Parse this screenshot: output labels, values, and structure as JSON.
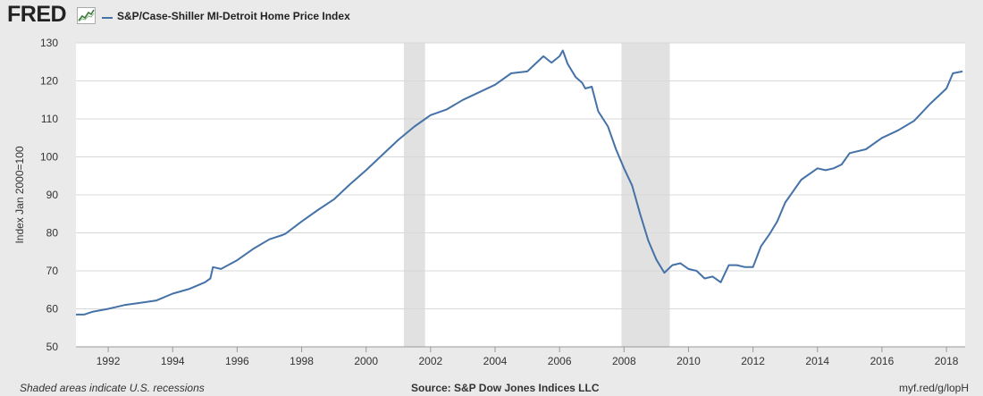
{
  "header": {
    "logo_text": "FRED",
    "logo_icon": "line-chart-icon",
    "legend_label": "S&P/Case-Shiller MI-Detroit Home Price Index"
  },
  "footer": {
    "left": "Shaded areas indicate U.S. recessions",
    "center": "Source: S&P Dow Jones Indices LLC",
    "right": "myf.red/g/lopH"
  },
  "colors": {
    "series": "#4572a7",
    "recession": "#e1e1e1",
    "plot_bg": "#ffffff",
    "page_bg": "#eaeaea",
    "grid": "#d8d8d8"
  },
  "chart_data": {
    "type": "line",
    "title": "",
    "xlabel": "",
    "ylabel": "Index Jan 2000=100",
    "xlim": [
      1991.0,
      2018.58
    ],
    "ylim": [
      50,
      130
    ],
    "x_ticks": [
      1992,
      1994,
      1996,
      1998,
      2000,
      2002,
      2004,
      2006,
      2008,
      2010,
      2012,
      2014,
      2016,
      2018
    ],
    "x_tick_labels": [
      "1992",
      "1994",
      "1996",
      "1998",
      "2000",
      "2002",
      "2004",
      "2006",
      "2008",
      "2010",
      "2012",
      "2014",
      "2016",
      "2018"
    ],
    "y_ticks": [
      50,
      60,
      70,
      80,
      90,
      100,
      110,
      120,
      130
    ],
    "y_tick_labels": [
      "50",
      "60",
      "70",
      "80",
      "90",
      "100",
      "110",
      "120",
      "130"
    ],
    "grid": "horizontal",
    "legend": "top-left",
    "recessions": [
      [
        2001.17,
        2001.83
      ],
      [
        2007.92,
        2009.42
      ]
    ],
    "series": [
      {
        "name": "S&P/Case-Shiller MI-Detroit Home Price Index",
        "x": [
          1991.0,
          1991.25,
          1991.5,
          1992.0,
          1992.5,
          1993.0,
          1993.5,
          1994.0,
          1994.5,
          1995.0,
          1995.17,
          1995.25,
          1995.5,
          1996.0,
          1996.5,
          1997.0,
          1997.4,
          1997.5,
          1998.0,
          1998.5,
          1999.0,
          1999.5,
          2000.0,
          2000.5,
          2001.0,
          2001.5,
          2002.0,
          2002.5,
          2003.0,
          2003.5,
          2004.0,
          2004.5,
          2005.0,
          2005.5,
          2005.75,
          2006.0,
          2006.1,
          2006.25,
          2006.5,
          2006.7,
          2006.8,
          2007.0,
          2007.2,
          2007.5,
          2007.75,
          2008.0,
          2008.25,
          2008.5,
          2008.75,
          2009.0,
          2009.25,
          2009.5,
          2009.75,
          2010.0,
          2010.25,
          2010.5,
          2010.75,
          2011.0,
          2011.25,
          2011.5,
          2011.75,
          2012.0,
          2012.25,
          2012.5,
          2012.75,
          2013.0,
          2013.5,
          2014.0,
          2014.25,
          2014.5,
          2014.75,
          2015.0,
          2015.5,
          2016.0,
          2016.5,
          2017.0,
          2017.5,
          2018.0,
          2018.2,
          2018.5
        ],
        "y": [
          58.5,
          58.5,
          59.2,
          60.0,
          61.0,
          61.6,
          62.2,
          64.0,
          65.2,
          67.0,
          68.0,
          71.0,
          70.5,
          72.8,
          75.8,
          78.3,
          79.4,
          79.8,
          83.0,
          86.0,
          88.8,
          92.8,
          96.5,
          100.5,
          104.5,
          108.0,
          111.0,
          112.5,
          115.0,
          117.0,
          119.0,
          122.0,
          122.5,
          126.5,
          124.8,
          126.5,
          128.0,
          124.5,
          121.0,
          119.5,
          118.0,
          118.5,
          112.0,
          108.0,
          102.0,
          97.0,
          92.5,
          85.0,
          78.0,
          73.0,
          69.5,
          71.5,
          72.0,
          70.5,
          70.0,
          68.0,
          68.5,
          67.0,
          71.5,
          71.5,
          71.0,
          71.0,
          76.5,
          79.5,
          83.0,
          88.0,
          94.0,
          97.0,
          96.5,
          97.0,
          98.0,
          101.0,
          102.0,
          105.0,
          107.0,
          109.5,
          114.0,
          118.0,
          122.0,
          122.5
        ]
      }
    ]
  }
}
